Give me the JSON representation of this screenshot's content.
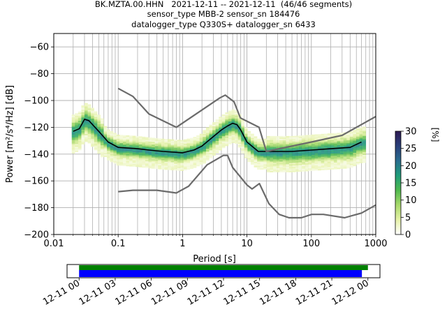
{
  "header": {
    "line1": "BK.MZTA.00.HHN   2021-12-11 -- 2021-12-11  (46/46 segments)",
    "line2": "sensor_type MBB-2 sensor_sn 184476",
    "line3": "datalogger_type Q330S+ datalogger_sn 6433"
  },
  "chart_data": [
    {
      "type": "heatmap",
      "xlabel": "Period [s]",
      "ylabel": "Power [m²/s⁴/Hz] [dB]",
      "xscale": "log",
      "xlim": [
        0.01,
        1000
      ],
      "ylim": [
        -200,
        -50
      ],
      "xticks": [
        0.01,
        0.1,
        1,
        10,
        100,
        1000
      ],
      "xtick_labels": [
        "0.01",
        "0.1",
        "1",
        "10",
        "100",
        "1000"
      ],
      "yticks": [
        -200,
        -180,
        -160,
        -140,
        -120,
        -100,
        -80,
        -60
      ],
      "ytick_labels": [
        "−200",
        "−180",
        "−160",
        "−140",
        "−120",
        "−100",
        "−80",
        "−60"
      ],
      "grid": true,
      "colorbar": {
        "label": "[%]",
        "range": [
          0,
          30
        ],
        "ticks": [
          0,
          5,
          10,
          15,
          20,
          25,
          30
        ],
        "colors": [
          "#ffffff",
          "#e6f2a8",
          "#a8d96b",
          "#4fb84d",
          "#1f9c7a",
          "#2a6d8f",
          "#2a3f7a",
          "#2d1a52"
        ]
      },
      "series": [
        {
          "name": "",
          "role": "median",
          "color": "#000000",
          "x": [
            0.02,
            0.025,
            0.03,
            0.035,
            0.05,
            0.07,
            0.1,
            0.2,
            0.3,
            0.5,
            1,
            1.5,
            2,
            3,
            4,
            5,
            6,
            7,
            8,
            10,
            15,
            20,
            50,
            100,
            200,
            400,
            600
          ],
          "y": [
            -123,
            -121,
            -114,
            -115,
            -123,
            -131,
            -135,
            -136,
            -137,
            -138,
            -139,
            -137,
            -134,
            -127,
            -122,
            -119,
            -117,
            -118,
            -122,
            -131,
            -138,
            -138,
            -138,
            -137,
            -136,
            -135,
            -131
          ]
        },
        {
          "name": "",
          "role": "model-high",
          "color": "#6b6b6b",
          "x": [
            0.1,
            0.17,
            0.3,
            0.8,
            3.8,
            4.6,
            6.3,
            7.9,
            15.4,
            20,
            40,
            100,
            300,
            1000
          ],
          "y": [
            -91,
            -97,
            -110,
            -120,
            -98,
            -96,
            -101,
            -113,
            -120,
            -138,
            -135,
            -131,
            -126,
            -112
          ]
        },
        {
          "name": "",
          "role": "model-low",
          "color": "#6b6b6b",
          "x": [
            0.1,
            0.17,
            0.4,
            0.8,
            1.24,
            2.4,
            4.3,
            5,
            6,
            10,
            12,
            15.6,
            21.9,
            31.6,
            45,
            70,
            101,
            154,
            328,
            600,
            1000
          ],
          "y": [
            -168,
            -167,
            -167,
            -169,
            -164,
            -148,
            -141,
            -141,
            -150,
            -163,
            -166,
            -162,
            -177,
            -185,
            -187.5,
            -187.5,
            -185,
            -185,
            -187.5,
            -184,
            -178
          ]
        }
      ]
    },
    {
      "type": "bar",
      "title": "",
      "orientation": "horizontal",
      "xtick_labels": [
        "12-11 00",
        "12-11 03",
        "12-11 06",
        "12-11 09",
        "12-11 12",
        "12-11 15",
        "12-11 18",
        "12-11 21",
        "12-12 00"
      ],
      "xlim": [
        "2021-12-10 23:00",
        "2021-12-12 01:00"
      ],
      "series": [
        {
          "name": "",
          "color": "#008000",
          "start": "2021-12-11 00:00",
          "end": "2021-12-12 00:00"
        },
        {
          "name": "",
          "color": "#0000ff",
          "start": "2021-12-11 00:00",
          "end": "2021-12-11 23:30"
        }
      ]
    }
  ]
}
